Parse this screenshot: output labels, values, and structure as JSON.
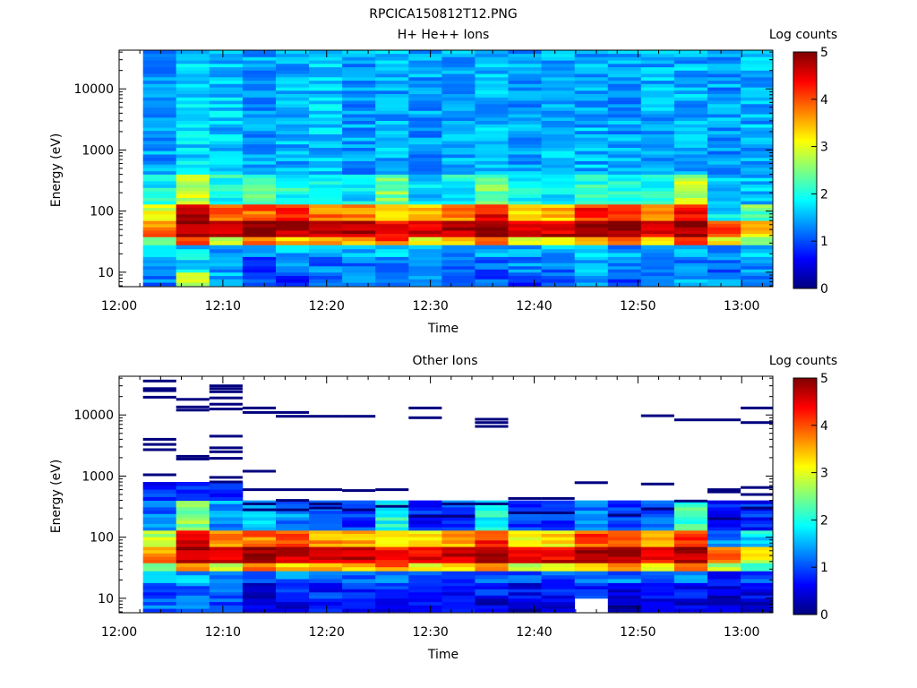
{
  "figure_title": "RPCICA150812T12.PNG",
  "colormap": [
    "#00007f",
    "#0000ff",
    "#007fff",
    "#00ffff",
    "#7fff7f",
    "#ffff00",
    "#ff7f00",
    "#ff0000",
    "#7f0000"
  ],
  "chart_data": [
    {
      "type": "heatmap",
      "title": "H+ He++ Ions",
      "xlabel": "Time",
      "ylabel": "Energy (eV)",
      "x_ticks": [
        "12:00",
        "12:10",
        "12:20",
        "12:30",
        "12:40",
        "12:50",
        "13:00"
      ],
      "y_ticks": [
        "10",
        "100",
        "1000",
        "10000"
      ],
      "y_scale": "log",
      "xlim_minutes_after_1200": [
        0,
        63
      ],
      "ylim_eV": [
        5.8,
        43000
      ],
      "colorbar_label": "Log counts",
      "colorbar_ticks": [
        "0",
        "1",
        "2",
        "3",
        "4",
        "5"
      ],
      "clim": [
        0,
        5
      ],
      "time_start_minutes": 2.3,
      "time_bin_minutes": 3.2,
      "energy_bands_eV": [
        {
          "from": 6,
          "to": 10,
          "level": [
            1.3,
            2.7,
            1.5,
            0.9,
            0.9,
            1.0,
            1.2,
            1.3,
            1.2,
            1.0,
            1.1,
            0.9,
            1.0,
            1.3,
            1.1,
            1.0,
            1.4,
            1.3,
            1.3
          ]
        },
        {
          "from": 10,
          "to": 18,
          "level": [
            1.5,
            1.8,
            1.4,
            1.0,
            1.4,
            1.2,
            1.1,
            1.2,
            1.3,
            1.1,
            1.0,
            1.3,
            1.2,
            1.5,
            1.3,
            1.1,
            1.3,
            1.2,
            1.4
          ]
        },
        {
          "from": 18,
          "to": 28,
          "level": [
            1.6,
            1.7,
            1.5,
            1.3,
            1.5,
            1.5,
            1.4,
            1.6,
            1.5,
            1.4,
            1.5,
            1.4,
            1.5,
            1.6,
            1.4,
            1.4,
            1.5,
            1.4,
            1.6
          ]
        },
        {
          "from": 28,
          "to": 38,
          "level": [
            2.3,
            4.2,
            3.0,
            3.8,
            3.4,
            3.7,
            3.4,
            4.0,
            3.0,
            3.3,
            4.1,
            3.2,
            3.4,
            3.7,
            3.8,
            3.5,
            4.3,
            3.2,
            2.6
          ]
        },
        {
          "from": 38,
          "to": 70,
          "level": [
            3.8,
            4.9,
            4.6,
            5.0,
            4.8,
            4.8,
            4.7,
            4.4,
            4.6,
            4.8,
            4.7,
            4.6,
            4.6,
            4.8,
            4.7,
            4.5,
            4.9,
            4.2,
            3.4
          ]
        },
        {
          "from": 70,
          "to": 130,
          "level": [
            3.0,
            4.6,
            3.8,
            3.9,
            4.1,
            3.8,
            3.6,
            3.4,
            3.5,
            3.7,
            4.4,
            3.4,
            3.5,
            4.2,
            4.1,
            3.6,
            4.4,
            1.8,
            2.4
          ]
        },
        {
          "from": 130,
          "to": 400,
          "level": [
            1.9,
            2.8,
            2.0,
            2.2,
            2.0,
            1.8,
            1.8,
            2.5,
            1.7,
            1.9,
            2.4,
            1.8,
            1.8,
            2.1,
            2.0,
            1.9,
            2.8,
            1.5,
            1.6
          ]
        },
        {
          "from": 400,
          "to": 43000,
          "level": [
            1.4,
            1.7,
            1.6,
            1.4,
            1.5,
            1.6,
            1.4,
            1.5,
            1.4,
            1.5,
            1.5,
            1.4,
            1.5,
            1.5,
            1.4,
            1.5,
            1.5,
            1.4,
            1.5
          ]
        }
      ]
    },
    {
      "type": "heatmap",
      "title": "Other Ions",
      "xlabel": "Time",
      "ylabel": "Energy (eV)",
      "x_ticks": [
        "12:00",
        "12:10",
        "12:20",
        "12:30",
        "12:40",
        "12:50",
        "13:00"
      ],
      "y_ticks": [
        "10",
        "100",
        "1000",
        "10000"
      ],
      "y_scale": "log",
      "xlim_minutes_after_1200": [
        0,
        63
      ],
      "ylim_eV": [
        5.8,
        43000
      ],
      "colorbar_label": "Log counts",
      "colorbar_ticks": [
        "0",
        "1",
        "2",
        "3",
        "4",
        "5"
      ],
      "clim": [
        0,
        5
      ],
      "time_start_minutes": 2.3,
      "time_bin_minutes": 3.2,
      "energy_bands_eV": [
        {
          "from": 6,
          "to": 10,
          "level": [
            1.2,
            1.1,
            1.0,
            0.4,
            0.6,
            0.6,
            0.5,
            0.6,
            0.5,
            0.7,
            0.5,
            0.4,
            0.4,
            null,
            0.3,
            0.3,
            0.4,
            0.3,
            0.4
          ]
        },
        {
          "from": 10,
          "to": 18,
          "level": [
            1.0,
            1.2,
            1.1,
            0.5,
            0.9,
            0.8,
            0.7,
            0.9,
            0.7,
            0.6,
            0.7,
            0.6,
            0.7,
            0.8,
            0.5,
            0.6,
            0.7,
            0.5,
            0.6
          ]
        },
        {
          "from": 18,
          "to": 28,
          "level": [
            1.5,
            1.5,
            1.4,
            0.9,
            1.2,
            1.1,
            1.0,
            1.2,
            1.0,
            1.0,
            1.1,
            1.0,
            1.0,
            1.1,
            1.2,
            1.1,
            1.3,
            0.8,
            1.0
          ]
        },
        {
          "from": 28,
          "to": 38,
          "level": [
            2.3,
            3.8,
            3.0,
            3.8,
            3.3,
            3.6,
            3.3,
            3.8,
            3.0,
            3.2,
            3.9,
            3.0,
            3.3,
            3.5,
            3.6,
            3.3,
            4.0,
            2.8,
            2.2
          ]
        },
        {
          "from": 38,
          "to": 70,
          "level": [
            3.7,
            4.8,
            4.5,
            4.9,
            4.7,
            4.7,
            4.6,
            4.3,
            4.5,
            4.7,
            4.6,
            4.5,
            4.5,
            4.7,
            4.6,
            4.4,
            4.8,
            4.0,
            3.1
          ]
        },
        {
          "from": 70,
          "to": 130,
          "level": [
            2.8,
            4.4,
            3.6,
            3.8,
            3.9,
            3.6,
            3.4,
            3.3,
            3.3,
            3.5,
            4.2,
            3.2,
            3.3,
            4.0,
            3.9,
            3.4,
            4.2,
            1.3,
            1.8
          ]
        },
        {
          "from": 130,
          "to": 400,
          "level": [
            1.2,
            2.5,
            1.4,
            1.5,
            1.3,
            1.0,
            0.9,
            2.0,
            0.8,
            1.0,
            1.9,
            0.8,
            0.9,
            1.3,
            0.9,
            1.0,
            2.2,
            0.6,
            0.8
          ]
        },
        {
          "from": 400,
          "to": 800,
          "level": [
            0.8,
            0.7,
            0.7,
            null,
            null,
            null,
            null,
            null,
            null,
            null,
            null,
            null,
            null,
            null,
            null,
            null,
            null,
            null,
            null
          ]
        }
      ],
      "sparse_lines": [
        {
          "col": 0,
          "eV": [
            36000,
            27000,
            25000,
            19500,
            4000,
            3300,
            2700,
            1050
          ]
        },
        {
          "col": 1,
          "eV": [
            18000,
            13500,
            12000,
            2100,
            1900
          ]
        },
        {
          "col": 2,
          "eV": [
            30000,
            27000,
            24000,
            19000,
            15000,
            12500,
            4500,
            2900,
            2500,
            1950,
            950,
            800
          ]
        },
        {
          "col": 3,
          "eV": [
            13000,
            11000,
            1200,
            600,
            350,
            280
          ]
        },
        {
          "col": 4,
          "eV": [
            11000,
            9500,
            600,
            400,
            280
          ]
        },
        {
          "col": 5,
          "eV": [
            9500,
            600,
            350,
            300
          ]
        },
        {
          "col": 6,
          "eV": [
            9500,
            580,
            280
          ]
        },
        {
          "col": 7,
          "eV": [
            600,
            320
          ]
        },
        {
          "col": 8,
          "eV": [
            13000,
            9000,
            220
          ]
        },
        {
          "col": 9,
          "eV": [
            350,
            220
          ]
        },
        {
          "col": 10,
          "eV": [
            8500,
            7500,
            6500,
            350
          ]
        },
        {
          "col": 11,
          "eV": [
            430,
            250
          ]
        },
        {
          "col": 12,
          "eV": [
            430,
            250
          ]
        },
        {
          "col": 13,
          "eV": [
            780
          ]
        },
        {
          "col": 14,
          "eV": [
            230
          ]
        },
        {
          "col": 15,
          "eV": [
            9700,
            740,
            290
          ]
        },
        {
          "col": 16,
          "eV": [
            8300,
            390
          ]
        },
        {
          "col": 17,
          "eV": [
            8300,
            600,
            550,
            200
          ]
        },
        {
          "col": 18,
          "eV": [
            13000,
            7500,
            650,
            500,
            300
          ]
        }
      ]
    }
  ]
}
